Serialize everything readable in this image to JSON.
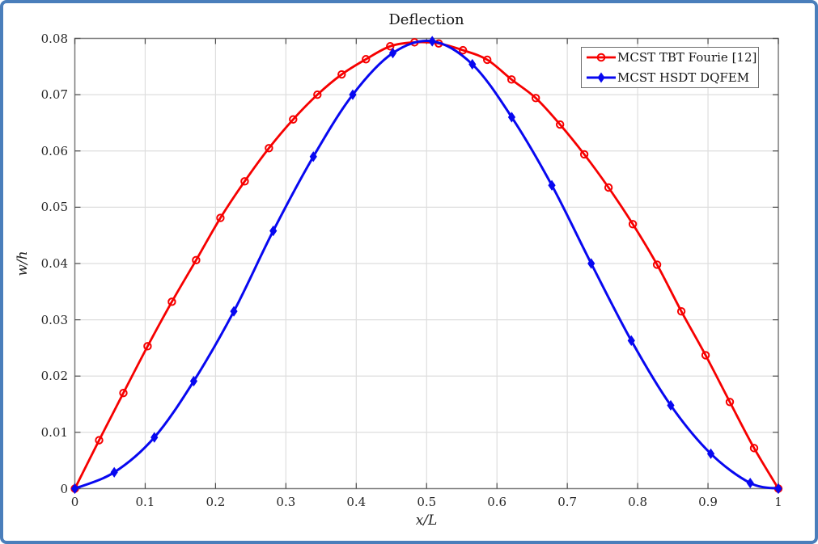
{
  "frame": {
    "border_color": "#4a7ebb",
    "background": "#ffffff"
  },
  "chart_data": {
    "type": "line",
    "title": "Deflection",
    "xlabel": "x/L",
    "ylabel": "w/h",
    "xlim": [
      0,
      1
    ],
    "ylim": [
      0,
      0.08
    ],
    "grid": true,
    "grid_color": "#dedede",
    "box_color": "#7a7a7a",
    "tick_color": "#4d4d4d",
    "xticks": [
      0,
      0.1,
      0.2,
      0.3,
      0.4,
      0.5,
      0.6,
      0.7,
      0.8,
      0.9,
      1
    ],
    "xtick_labels": [
      "0",
      "0.1",
      "0.2",
      "0.3",
      "0.4",
      "0.5",
      "0.6",
      "0.7",
      "0.8",
      "0.9",
      "1"
    ],
    "yticks": [
      0,
      0.01,
      0.02,
      0.03,
      0.04,
      0.05,
      0.06,
      0.07,
      0.08
    ],
    "ytick_labels": [
      "0",
      "0.01",
      "0.02",
      "0.03",
      "0.04",
      "0.05",
      "0.06",
      "0.07",
      "0.08"
    ],
    "legend": {
      "position": "top-right"
    },
    "series": [
      {
        "name": "MCST TBT Fourie [12]",
        "color": "#f60000",
        "marker": "circle",
        "line_width": 2.8,
        "x": [
          0,
          0.0345,
          0.069,
          0.1034,
          0.1379,
          0.1724,
          0.2069,
          0.2414,
          0.2759,
          0.3103,
          0.3448,
          0.3793,
          0.4138,
          0.4483,
          0.4828,
          0.5172,
          0.5517,
          0.5862,
          0.6207,
          0.6552,
          0.6897,
          0.7241,
          0.7586,
          0.7931,
          0.8276,
          0.8621,
          0.8966,
          0.931,
          0.9655,
          1
        ],
        "y": [
          0,
          0.0086,
          0.017,
          0.0253,
          0.0332,
          0.0406,
          0.0481,
          0.0546,
          0.0605,
          0.0656,
          0.07,
          0.0736,
          0.0763,
          0.0786,
          0.0793,
          0.0791,
          0.0779,
          0.0762,
          0.0727,
          0.0694,
          0.0647,
          0.0594,
          0.0535,
          0.047,
          0.0398,
          0.0315,
          0.0237,
          0.0154,
          0.0072,
          0
        ]
      },
      {
        "name": "MCST HSDT DQFEM",
        "color": "#0808f0",
        "marker": "diamond",
        "line_width": 3.0,
        "x": [
          0,
          0.056,
          0.113,
          0.169,
          0.226,
          0.282,
          0.339,
          0.395,
          0.452,
          0.508,
          0.565,
          0.621,
          0.678,
          0.734,
          0.791,
          0.847,
          0.904,
          0.96,
          1
        ],
        "y": [
          0,
          0.0029,
          0.0091,
          0.0191,
          0.0315,
          0.0458,
          0.059,
          0.07,
          0.0774,
          0.0795,
          0.0754,
          0.066,
          0.0539,
          0.04,
          0.0263,
          0.0148,
          0.0062,
          0.001,
          0
        ]
      }
    ]
  }
}
